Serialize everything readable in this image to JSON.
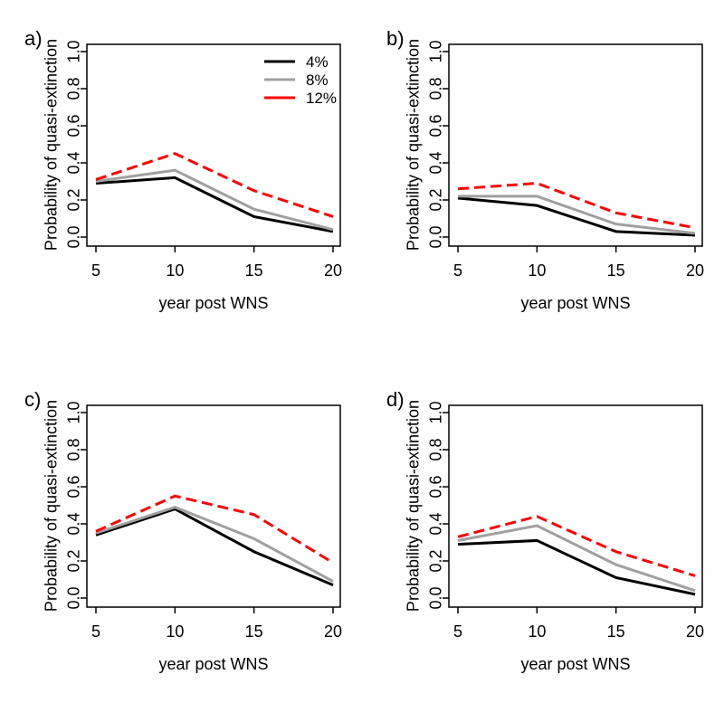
{
  "figure": {
    "background": "#ffffff",
    "series_colors": {
      "4%": "#000000",
      "8%": "#a0a0a0",
      "12%": "#ff0000"
    }
  },
  "chart_data": [
    {
      "label": "a)",
      "type": "line",
      "x": [
        5,
        10,
        15,
        20
      ],
      "xticks": [
        5,
        10,
        15,
        20
      ],
      "yticks": [
        0,
        0.2,
        0.4,
        0.6,
        0.8,
        1
      ],
      "ylim": [
        0,
        1
      ],
      "xlabel": "year post WNS",
      "ylabel": "Probability of quasi-extinction",
      "show_legend": true,
      "legend_position": "top-right",
      "series": [
        {
          "name": "4%",
          "color": "#000000",
          "dashed": false,
          "values": [
            0.29,
            0.32,
            0.11,
            0.03
          ]
        },
        {
          "name": "8%",
          "color": "#a0a0a0",
          "dashed": false,
          "values": [
            0.3,
            0.36,
            0.15,
            0.04
          ]
        },
        {
          "name": "12%",
          "color": "#ff0000",
          "dashed": true,
          "values": [
            0.31,
            0.45,
            0.25,
            0.11
          ]
        }
      ]
    },
    {
      "label": "b)",
      "type": "line",
      "x": [
        5,
        10,
        15,
        20
      ],
      "xticks": [
        5,
        10,
        15,
        20
      ],
      "yticks": [
        0,
        0.2,
        0.4,
        0.6,
        0.8,
        1
      ],
      "ylim": [
        0,
        1
      ],
      "xlabel": "year post WNS",
      "ylabel": "Probability of quasi-extinction",
      "show_legend": false,
      "series": [
        {
          "name": "4%",
          "color": "#000000",
          "dashed": false,
          "values": [
            0.21,
            0.17,
            0.03,
            0.01
          ]
        },
        {
          "name": "8%",
          "color": "#a0a0a0",
          "dashed": false,
          "values": [
            0.22,
            0.22,
            0.07,
            0.02
          ]
        },
        {
          "name": "12%",
          "color": "#ff0000",
          "dashed": true,
          "values": [
            0.26,
            0.29,
            0.13,
            0.05
          ]
        }
      ]
    },
    {
      "label": "c)",
      "type": "line",
      "x": [
        5,
        10,
        15,
        20
      ],
      "xticks": [
        5,
        10,
        15,
        20
      ],
      "yticks": [
        0,
        0.2,
        0.4,
        0.6,
        0.8,
        1
      ],
      "ylim": [
        0,
        1
      ],
      "xlabel": "year post WNS",
      "ylabel": "Probability of quasi-extinction",
      "show_legend": false,
      "series": [
        {
          "name": "4%",
          "color": "#000000",
          "dashed": false,
          "values": [
            0.34,
            0.48,
            0.25,
            0.07
          ]
        },
        {
          "name": "8%",
          "color": "#a0a0a0",
          "dashed": false,
          "values": [
            0.35,
            0.49,
            0.32,
            0.09
          ]
        },
        {
          "name": "12%",
          "color": "#ff0000",
          "dashed": true,
          "values": [
            0.36,
            0.55,
            0.45,
            0.19
          ]
        }
      ]
    },
    {
      "label": "d)",
      "type": "line",
      "x": [
        5,
        10,
        15,
        20
      ],
      "xticks": [
        5,
        10,
        15,
        20
      ],
      "yticks": [
        0,
        0.2,
        0.4,
        0.6,
        0.8,
        1
      ],
      "ylim": [
        0,
        1
      ],
      "xlabel": "year post WNS",
      "ylabel": "Probability of quasi-extinction",
      "show_legend": false,
      "series": [
        {
          "name": "4%",
          "color": "#000000",
          "dashed": false,
          "values": [
            0.29,
            0.31,
            0.11,
            0.02
          ]
        },
        {
          "name": "8%",
          "color": "#a0a0a0",
          "dashed": false,
          "values": [
            0.31,
            0.39,
            0.18,
            0.04
          ]
        },
        {
          "name": "12%",
          "color": "#ff0000",
          "dashed": true,
          "values": [
            0.33,
            0.44,
            0.25,
            0.12
          ]
        }
      ]
    }
  ]
}
